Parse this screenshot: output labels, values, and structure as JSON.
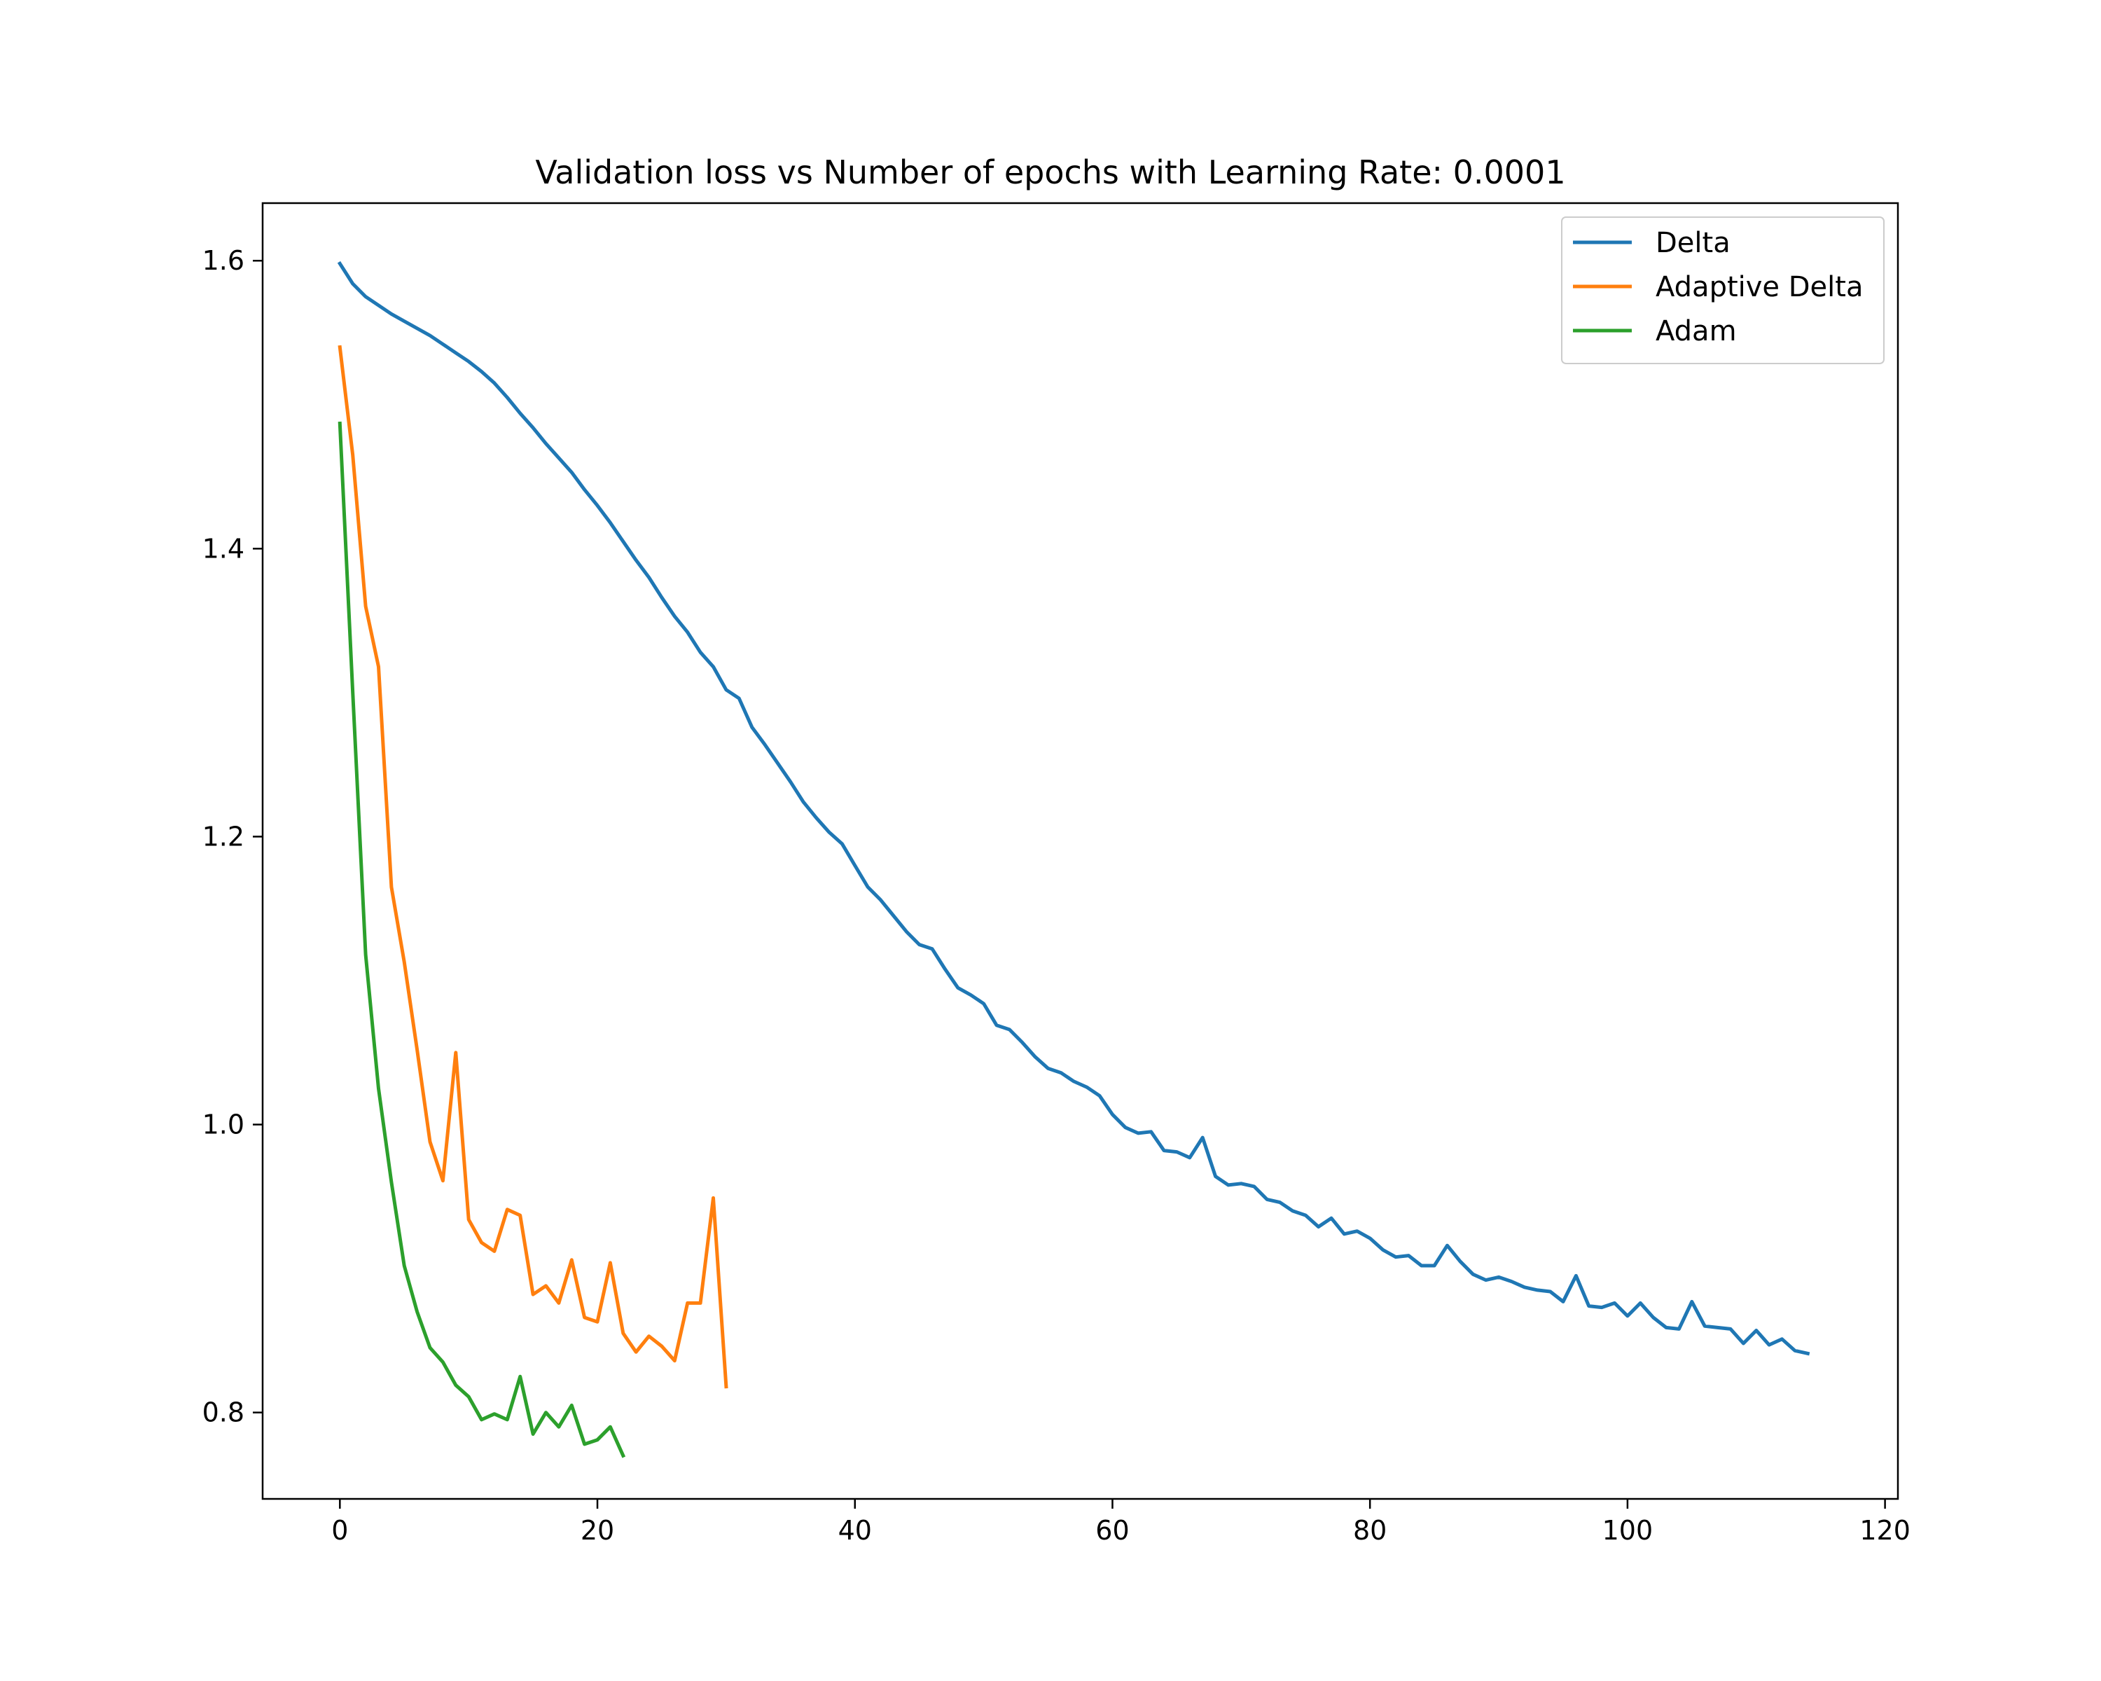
{
  "chart_data": {
    "type": "line",
    "title": "Validation loss vs Number of epochs with Learning Rate: 0.0001",
    "xlabel": "",
    "ylabel": "",
    "xlim": [
      -6,
      121
    ],
    "ylim": [
      0.74,
      1.64
    ],
    "xticks": [
      0,
      20,
      40,
      60,
      80,
      100,
      120
    ],
    "yticks": [
      0.8,
      1.0,
      1.2,
      1.4,
      1.6
    ],
    "grid": false,
    "legend": "top-right",
    "series": [
      {
        "name": "Delta",
        "color": "#1f77b4",
        "x_start": 0,
        "values": [
          1.598,
          1.584,
          1.575,
          1.569,
          1.563,
          1.558,
          1.553,
          1.548,
          1.542,
          1.536,
          1.53,
          1.523,
          1.515,
          1.505,
          1.494,
          1.484,
          1.473,
          1.463,
          1.453,
          1.441,
          1.43,
          1.418,
          1.405,
          1.392,
          1.38,
          1.366,
          1.353,
          1.342,
          1.328,
          1.318,
          1.302,
          1.296,
          1.276,
          1.264,
          1.251,
          1.238,
          1.224,
          1.213,
          1.203,
          1.195,
          1.18,
          1.165,
          1.156,
          1.145,
          1.134,
          1.125,
          1.122,
          1.108,
          1.095,
          1.09,
          1.084,
          1.069,
          1.066,
          1.057,
          1.047,
          1.039,
          1.036,
          1.03,
          1.026,
          1.02,
          1.007,
          0.998,
          0.994,
          0.995,
          0.982,
          0.981,
          0.977,
          0.991,
          0.964,
          0.958,
          0.959,
          0.957,
          0.948,
          0.946,
          0.94,
          0.937,
          0.929,
          0.935,
          0.924,
          0.926,
          0.921,
          0.913,
          0.908,
          0.909,
          0.902,
          0.902,
          0.916,
          0.905,
          0.896,
          0.892,
          0.894,
          0.891,
          0.887,
          0.885,
          0.884,
          0.877,
          0.895,
          0.874,
          0.873,
          0.876,
          0.867,
          0.876,
          0.866,
          0.859,
          0.858,
          0.877,
          0.86,
          0.859,
          0.858,
          0.848,
          0.857,
          0.847,
          0.851,
          0.843,
          0.841
        ]
      },
      {
        "name": "Adaptive Delta",
        "color": "#ff7f0e",
        "x_start": 0,
        "values": [
          1.54,
          1.465,
          1.36,
          1.318,
          1.165,
          1.113,
          1.052,
          0.988,
          0.961,
          1.05,
          0.934,
          0.918,
          0.912,
          0.941,
          0.937,
          0.882,
          0.888,
          0.876,
          0.906,
          0.866,
          0.863,
          0.904,
          0.855,
          0.842,
          0.853,
          0.846,
          0.836,
          0.876,
          0.876,
          0.949,
          0.818
        ]
      },
      {
        "name": "Adam",
        "color": "#2ca02c",
        "x_start": 0,
        "values": [
          1.487,
          1.3,
          1.118,
          1.025,
          0.96,
          0.902,
          0.87,
          0.845,
          0.835,
          0.819,
          0.811,
          0.795,
          0.799,
          0.795,
          0.825,
          0.785,
          0.8,
          0.79,
          0.805,
          0.778,
          0.781,
          0.79,
          0.77
        ]
      }
    ]
  }
}
